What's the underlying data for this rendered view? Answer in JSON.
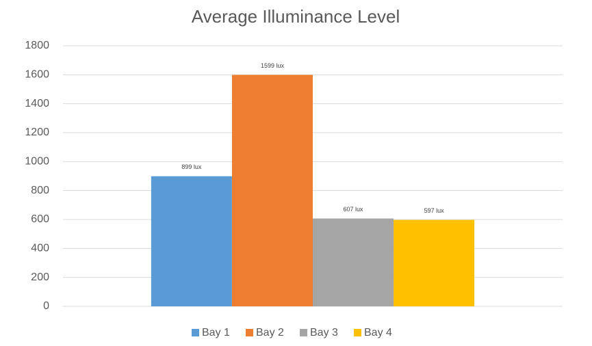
{
  "chart_data": {
    "type": "bar",
    "title": "Average Illuminance Level",
    "categories": [
      null
    ],
    "series": [
      {
        "name": "Bay 1",
        "color": "#5b9bd5",
        "values": [
          899
        ],
        "value_labels": [
          "899 lux"
        ]
      },
      {
        "name": "Bay 2",
        "color": "#ed7d31",
        "values": [
          1599
        ],
        "value_labels": [
          "1599 lux"
        ]
      },
      {
        "name": "Bay 3",
        "color": "#a5a5a5",
        "values": [
          607
        ],
        "value_labels": [
          "607 lux"
        ]
      },
      {
        "name": "Bay 4",
        "color": "#ffc000",
        "values": [
          597
        ],
        "value_labels": [
          "597 lux"
        ]
      }
    ],
    "ylim": [
      0,
      1800
    ],
    "yticks": [
      0,
      200,
      400,
      600,
      800,
      1000,
      1200,
      1400,
      1600,
      1800
    ],
    "grid": true,
    "legend": "bottom"
  }
}
